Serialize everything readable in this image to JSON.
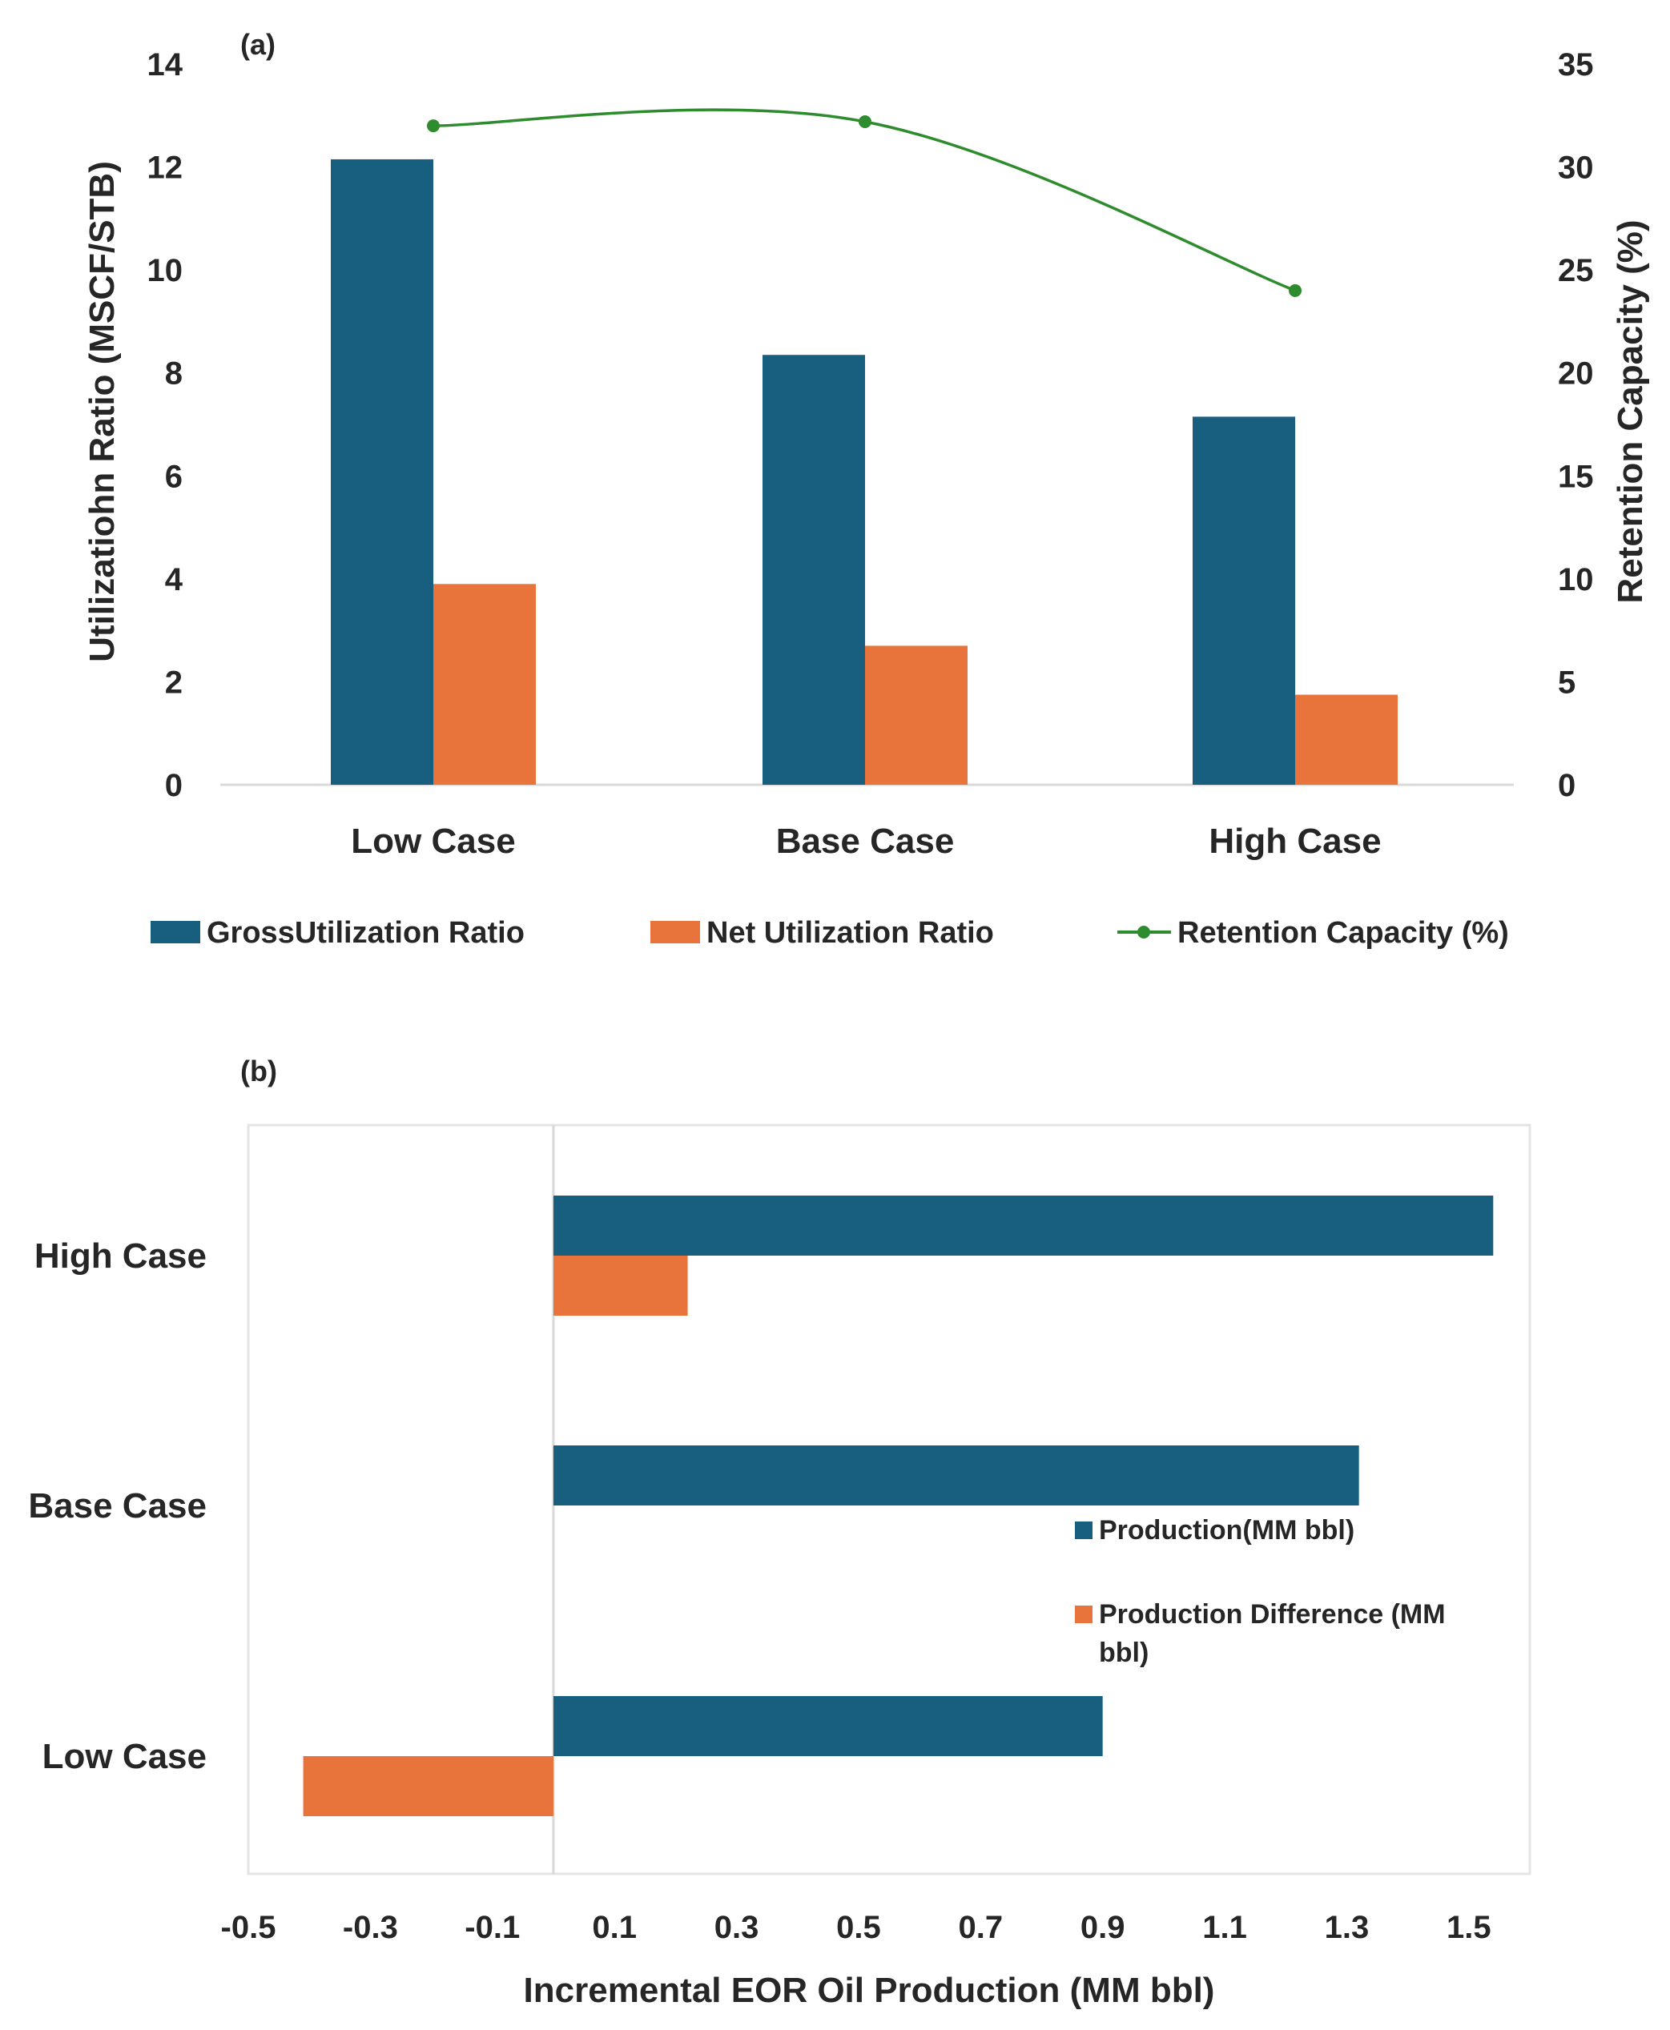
{
  "colors": {
    "gross": "#175e7f",
    "net": "#e8743b",
    "retention": "#2e8b2e",
    "production": "#175e7f",
    "difference": "#e8743b",
    "axis": "#d9d9d9",
    "text": "#262626"
  },
  "chart_data": [
    {
      "panel": "(a)",
      "type": "bar",
      "title": "",
      "categories": [
        "Low Case",
        "Base Case",
        "High Case"
      ],
      "ylabel": "Utilizatiohn Ratio (MSCF/STB)",
      "y2label": "Retention Capacity (%)",
      "ylim": [
        0,
        14
      ],
      "y2lim": [
        0,
        35
      ],
      "yticks": [
        "0",
        "2",
        "4",
        "6",
        "8",
        "10",
        "12",
        "14"
      ],
      "y2ticks": [
        "0",
        "5",
        "10",
        "15",
        "20",
        "25",
        "30",
        "35"
      ],
      "series": [
        {
          "name": "GrossUtilization Ratio",
          "kind": "bar",
          "axis": "left",
          "values": [
            12.15,
            8.35,
            7.15
          ]
        },
        {
          "name": "Net Utilization Ratio",
          "kind": "bar",
          "axis": "left",
          "values": [
            3.9,
            2.7,
            1.75
          ]
        },
        {
          "name": "Retention Capacity (%)",
          "kind": "line",
          "axis": "right",
          "smooth": true,
          "values": [
            32.0,
            32.2,
            24.0
          ]
        }
      ],
      "legend": "bottom"
    },
    {
      "panel": "(b)",
      "type": "bar",
      "orientation": "horizontal",
      "title": "",
      "categories": [
        "High Case",
        "Base Case",
        "Low Case"
      ],
      "xlabel": "Incremental EOR Oil Production (MM bbl)",
      "xlim": [
        -0.5,
        1.6
      ],
      "xticks": [
        "-0.5",
        "-0.3",
        "-0.1",
        "0.1",
        "0.3",
        "0.5",
        "0.7",
        "0.9",
        "1.1",
        "1.3",
        "1.5"
      ],
      "series": [
        {
          "name": "Production(MM bbl)",
          "values": [
            1.54,
            1.32,
            0.9
          ]
        },
        {
          "name": "Production Difference (MM bbl)",
          "values": [
            0.22,
            0.0,
            -0.41
          ]
        }
      ],
      "legend": "right"
    }
  ]
}
